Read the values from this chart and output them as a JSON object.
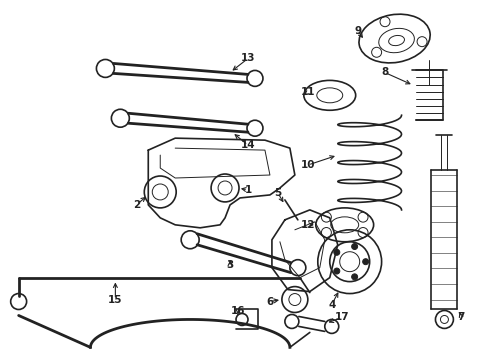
{
  "bg_color": "#ffffff",
  "line_color": "#222222",
  "figsize": [
    4.9,
    3.6
  ],
  "dpi": 100
}
